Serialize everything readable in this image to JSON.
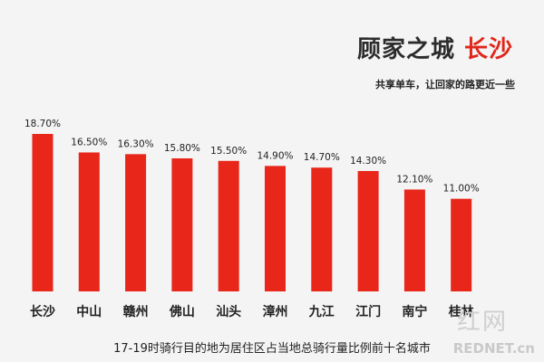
{
  "header": {
    "title_main": "顾家之城",
    "title_city": "长沙",
    "subtitle": "共享单车，让回家的路更近一些"
  },
  "footer": {
    "caption": "17-19时骑行目的地为居住区占当地总骑行量比例前十名城市"
  },
  "watermark": {
    "text": "REDNET.cn",
    "mark": "红网"
  },
  "colors": {
    "bar": "#e8261a",
    "title": "#2c2c2c",
    "accent": "#e0261b"
  },
  "chart_data": {
    "type": "bar",
    "categories": [
      "长沙",
      "中山",
      "赣州",
      "佛山",
      "汕头",
      "漳州",
      "九江",
      "江门",
      "南宁",
      "桂林"
    ],
    "values": [
      18.7,
      16.5,
      16.3,
      15.8,
      15.5,
      14.9,
      14.7,
      14.3,
      12.1,
      11.0
    ],
    "value_labels": [
      "18.70%",
      "16.50%",
      "16.30%",
      "15.80%",
      "15.50%",
      "14.90%",
      "14.70%",
      "14.30%",
      "12.10%",
      "11.00%"
    ],
    "ylim": [
      0,
      18.7
    ],
    "grid": false,
    "legend": "none"
  }
}
